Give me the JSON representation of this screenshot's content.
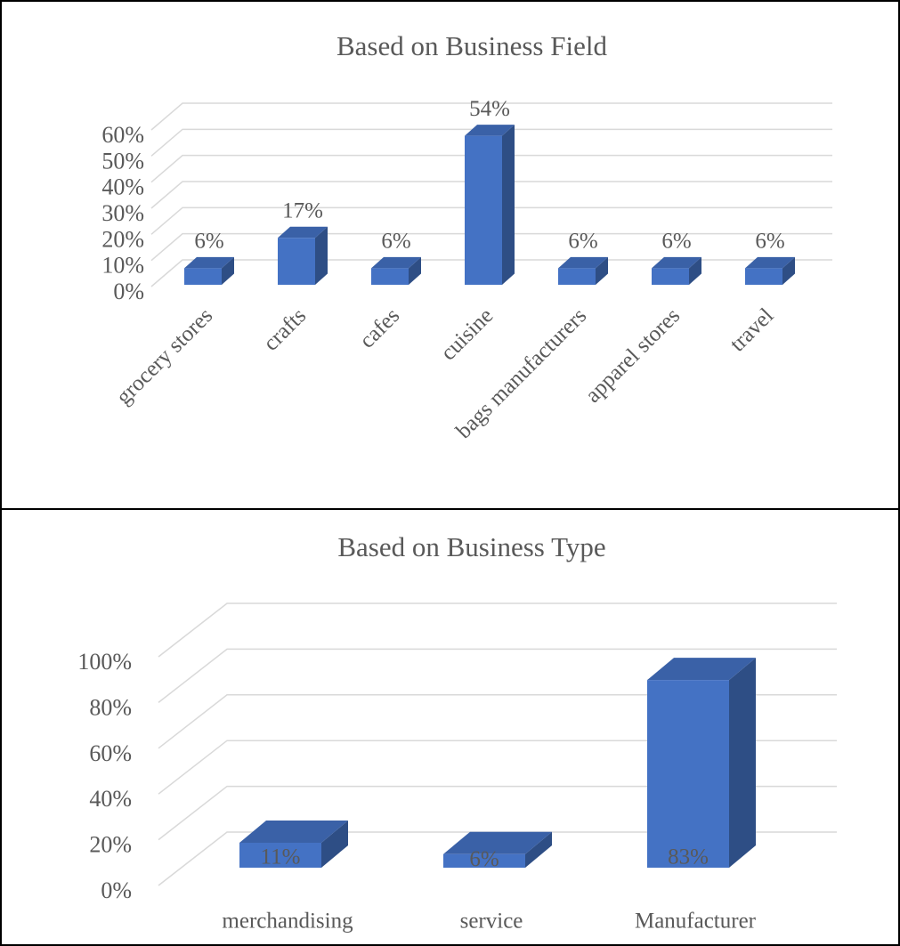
{
  "chart_data": [
    {
      "type": "bar3d",
      "title": "Based on Business Field",
      "categories": [
        "grocery stores",
        "crafts",
        "cafes",
        "cuisine",
        "bags manufacturers",
        "apparel stores",
        "travel"
      ],
      "values": [
        6,
        17,
        6,
        54,
        6,
        6,
        6
      ],
      "value_labels": [
        "6%",
        "17%",
        "6%",
        "54%",
        "6%",
        "6%",
        "6%"
      ],
      "color": "#4472c4",
      "ylim": [
        0,
        60
      ],
      "yticks": [
        {
          "value": 0,
          "label": "0%"
        },
        {
          "value": 10,
          "label": "10%"
        },
        {
          "value": 20,
          "label": "20%"
        },
        {
          "value": 30,
          "label": "30%"
        },
        {
          "value": 40,
          "label": "40%"
        },
        {
          "value": 50,
          "label": "50%"
        },
        {
          "value": 60,
          "label": "60%"
        }
      ],
      "grid": true
    },
    {
      "type": "bar3d",
      "title": "Based on Business Type",
      "categories": [
        "merchandising",
        "service",
        "Manufacturer"
      ],
      "values": [
        11,
        6,
        83
      ],
      "value_labels": [
        "11%",
        "6%",
        "83%"
      ],
      "color": "#4472c4",
      "ylim": [
        0,
        100
      ],
      "yticks": [
        {
          "value": 0,
          "label": "0%"
        },
        {
          "value": 20,
          "label": "20%"
        },
        {
          "value": 40,
          "label": "40%"
        },
        {
          "value": 60,
          "label": "60%"
        },
        {
          "value": 80,
          "label": "80%"
        },
        {
          "value": 100,
          "label": "100%"
        }
      ],
      "grid": true
    }
  ]
}
